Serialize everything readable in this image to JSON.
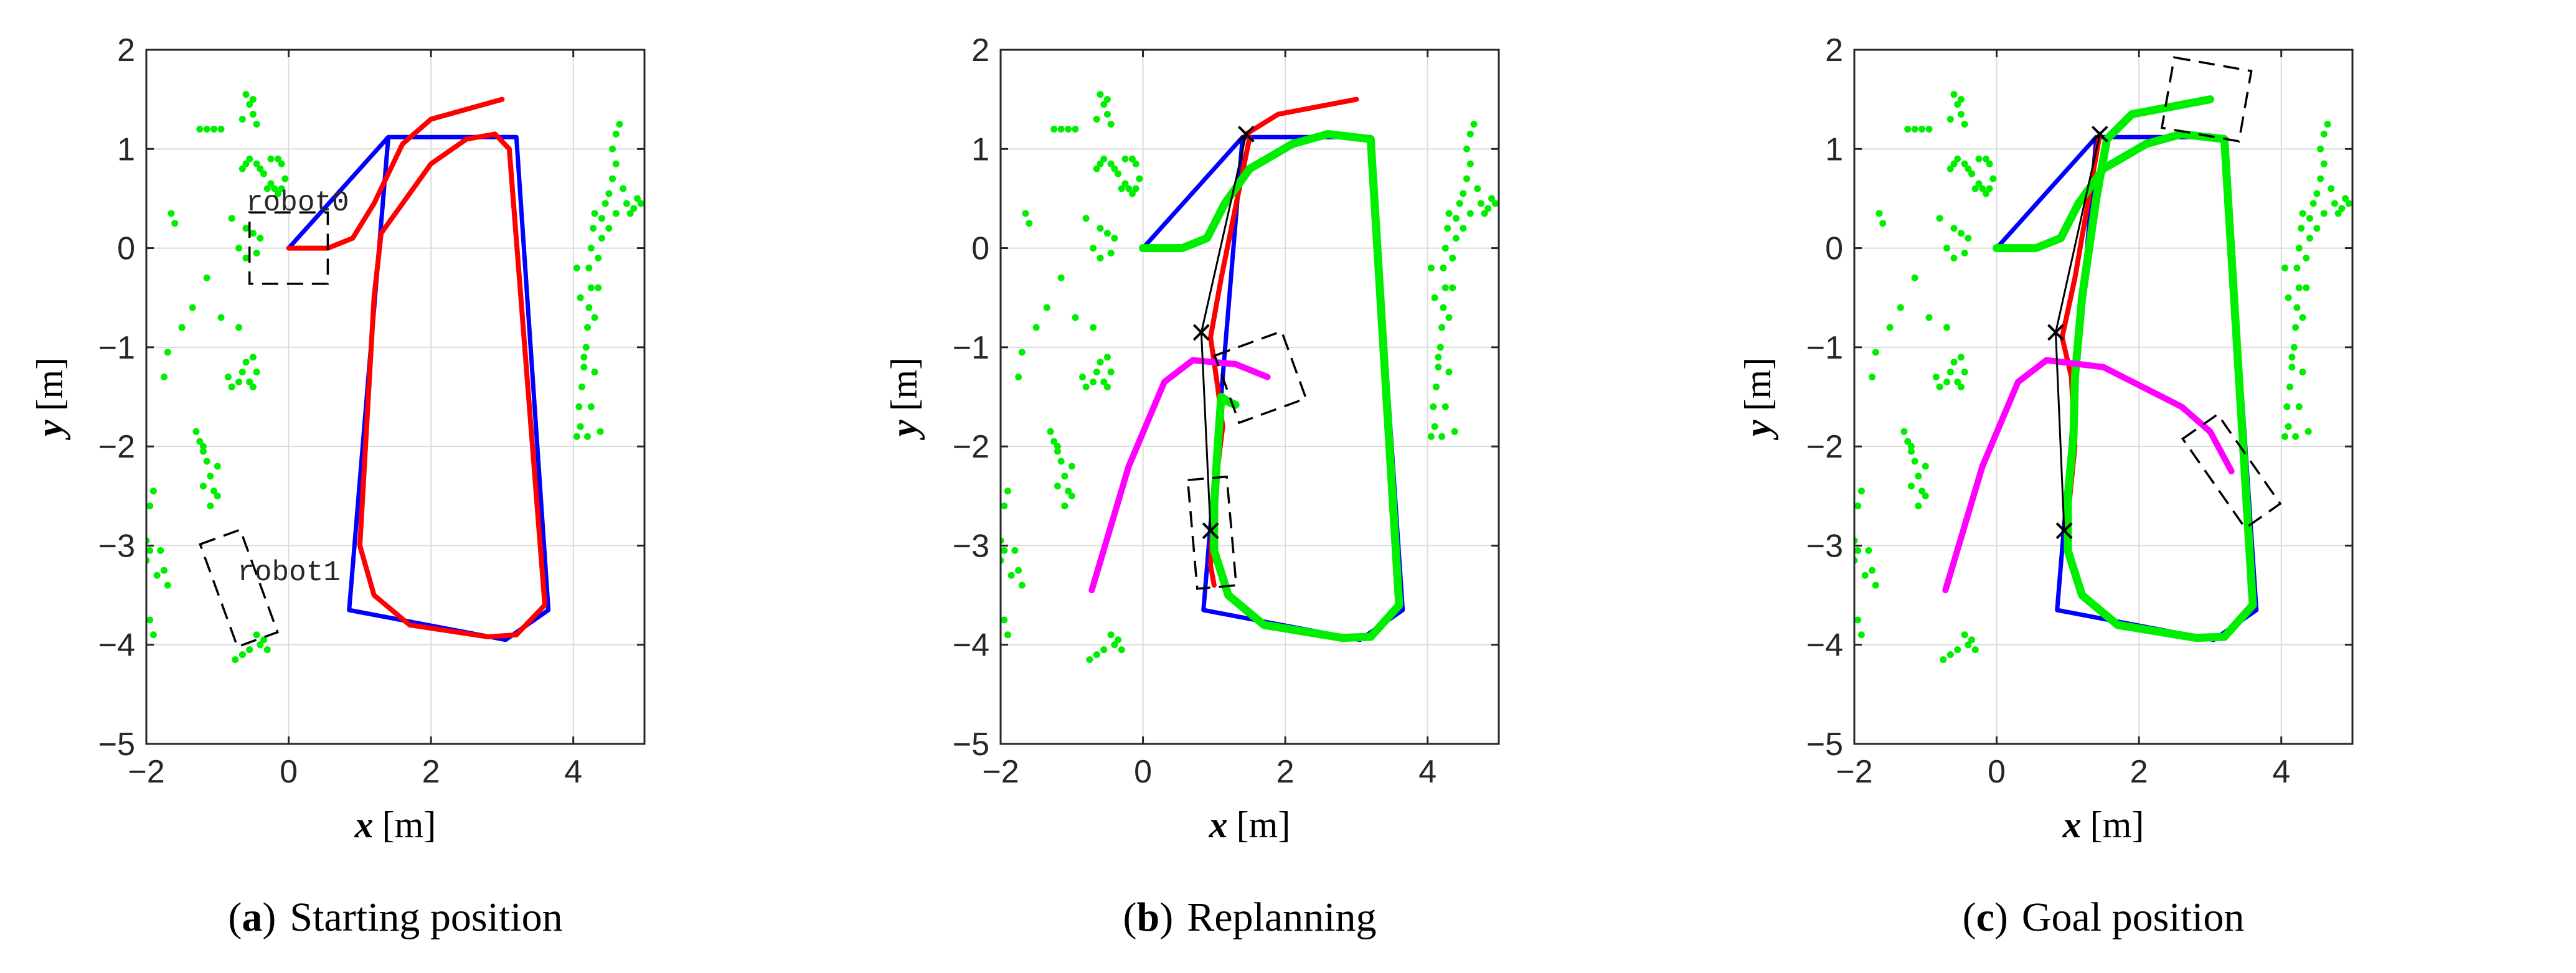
{
  "colors": {
    "reference": "#0000ff",
    "robot0_path": "#ff0000",
    "robot0_actual": "#00ee00",
    "robot1_path": "#ff00ff",
    "obstacles": "#00ee00",
    "waypoints": "#000000",
    "grid": "#dcdcdc"
  },
  "chart_data": [
    {
      "type": "line",
      "panel": "a",
      "caption_letter": "a",
      "caption_text": "Starting position",
      "xlabel_var": "x",
      "xlabel_unit": "[m]",
      "ylabel_var": "y",
      "ylabel_unit": "[m]",
      "xlim": [
        -2,
        5
      ],
      "ylim": [
        -5,
        2
      ],
      "xticks": [
        "−2",
        "0",
        "2",
        "4"
      ],
      "yticks": [
        "−5",
        "−4",
        "−3",
        "−2",
        "−1",
        "0",
        "1",
        "2"
      ],
      "grid": true,
      "robot_labels": [
        {
          "text": "robot0",
          "x": -0.6,
          "y": 0.38
        },
        {
          "text": "robot1",
          "x": -0.72,
          "y": -3.35
        }
      ],
      "robot_boxes": [
        {
          "name": "robot0",
          "cx": 0.0,
          "cy": 0.0,
          "w": 1.1,
          "h": 0.72,
          "angle": 0
        },
        {
          "name": "robot1",
          "cx": -0.7,
          "cy": -3.43,
          "w": 0.6,
          "h": 1.1,
          "angle": -20
        }
      ],
      "series": [
        {
          "key": "reference",
          "points": [
            [
              0,
              0
            ],
            [
              1.4,
              1.12
            ],
            [
              3.2,
              1.12
            ],
            [
              3.65,
              -3.65
            ],
            [
              3.05,
              -3.95
            ],
            [
              0.85,
              -3.65
            ],
            [
              1.4,
              1.12
            ],
            [
              0,
              0
            ]
          ]
        },
        {
          "key": "robot0_path",
          "points": [
            [
              0,
              0
            ],
            [
              0.55,
              0
            ],
            [
              0.9,
              0.1
            ],
            [
              1.2,
              0.45
            ],
            [
              1.6,
              1.05
            ],
            [
              2.0,
              1.3
            ],
            [
              3.0,
              1.5
            ]
          ]
        },
        {
          "key": "robot0_path",
          "points": [
            [
              1.3,
              0.15
            ],
            [
              1.2,
              -0.5
            ],
            [
              1.0,
              -3.0
            ],
            [
              1.2,
              -3.5
            ],
            [
              1.7,
              -3.8
            ],
            [
              2.8,
              -3.92
            ],
            [
              3.2,
              -3.9
            ],
            [
              3.6,
              -3.6
            ],
            [
              3.1,
              1.0
            ],
            [
              2.9,
              1.15
            ],
            [
              2.5,
              1.1
            ],
            [
              2.0,
              0.85
            ],
            [
              1.55,
              0.4
            ],
            [
              1.3,
              0.15
            ]
          ]
        }
      ],
      "waypoints": []
    },
    {
      "type": "line",
      "panel": "b",
      "caption_letter": "b",
      "caption_text": "Replanning",
      "xlabel_var": "x",
      "xlabel_unit": "[m]",
      "ylabel_var": "y",
      "ylabel_unit": "[m]",
      "xlim": [
        -2,
        5
      ],
      "ylim": [
        -5,
        2
      ],
      "xticks": [
        "−2",
        "0",
        "2",
        "4"
      ],
      "yticks": [
        "−5",
        "−4",
        "−3",
        "−2",
        "−1",
        "0",
        "1",
        "2"
      ],
      "grid": true,
      "robot_labels": [],
      "robot_boxes": [
        {
          "name": "robot0",
          "cx": 1.65,
          "cy": -1.3,
          "w": 1.0,
          "h": 0.72,
          "angle": -20
        },
        {
          "name": "robot1",
          "cx": 0.97,
          "cy": -2.87,
          "w": 0.55,
          "h": 1.1,
          "angle": -5
        }
      ],
      "series": [
        {
          "key": "reference",
          "points": [
            [
              0,
              0
            ],
            [
              1.4,
              1.12
            ],
            [
              3.2,
              1.12
            ],
            [
              3.65,
              -3.65
            ],
            [
              3.05,
              -3.95
            ],
            [
              0.85,
              -3.65
            ],
            [
              1.4,
              1.12
            ],
            [
              0,
              0
            ]
          ]
        },
        {
          "key": "robot0_path",
          "points": [
            [
              1.5,
              1.12
            ],
            [
              1.1,
              -0.3
            ],
            [
              0.95,
              -0.9
            ],
            [
              1.05,
              -1.4
            ],
            [
              1.12,
              -1.8
            ],
            [
              1.0,
              -2.5
            ],
            [
              0.95,
              -3.2
            ],
            [
              1.0,
              -3.4
            ]
          ]
        },
        {
          "key": "robot0_path",
          "points": [
            [
              1.45,
              1.15
            ],
            [
              1.9,
              1.35
            ],
            [
              3.0,
              1.5
            ]
          ]
        },
        {
          "key": "robot0_actual",
          "points": [
            [
              0,
              0
            ],
            [
              0.55,
              0
            ],
            [
              0.9,
              0.1
            ],
            [
              1.15,
              0.45
            ],
            [
              1.5,
              0.8
            ],
            [
              2.1,
              1.05
            ],
            [
              2.6,
              1.15
            ],
            [
              3.2,
              1.1
            ],
            [
              3.6,
              -3.6
            ],
            [
              3.2,
              -3.92
            ],
            [
              2.8,
              -3.93
            ],
            [
              1.7,
              -3.8
            ],
            [
              1.2,
              -3.5
            ],
            [
              1.0,
              -3.05
            ],
            [
              1.0,
              -2.6
            ],
            [
              1.05,
              -2.0
            ],
            [
              1.1,
              -1.5
            ],
            [
              1.2,
              -1.55
            ],
            [
              1.3,
              -1.58
            ]
          ]
        },
        {
          "key": "robot1_path",
          "points": [
            [
              -0.72,
              -3.45
            ],
            [
              -0.2,
              -2.2
            ],
            [
              0.3,
              -1.35
            ],
            [
              0.7,
              -1.13
            ],
            [
              1.3,
              -1.17
            ],
            [
              1.75,
              -1.3
            ]
          ]
        }
      ],
      "waypoints": [
        [
          1.45,
          1.15
        ],
        [
          0.82,
          -0.85
        ],
        [
          0.95,
          -2.85
        ]
      ]
    },
    {
      "type": "line",
      "panel": "c",
      "caption_letter": "c",
      "caption_text": "Goal position",
      "xlabel_var": "x",
      "xlabel_unit": "[m]",
      "ylabel_var": "y",
      "ylabel_unit": "[m]",
      "xlim": [
        -2,
        5
      ],
      "ylim": [
        -5,
        2
      ],
      "xticks": [
        "−2",
        "0",
        "2",
        "4"
      ],
      "yticks": [
        "−5",
        "−4",
        "−3",
        "−2",
        "−1",
        "0",
        "1",
        "2"
      ],
      "grid": true,
      "robot_labels": [],
      "robot_boxes": [
        {
          "name": "robot0",
          "cx": 2.95,
          "cy": 1.5,
          "w": 1.1,
          "h": 0.72,
          "angle": 10
        },
        {
          "name": "robot1",
          "cx": 3.3,
          "cy": -2.25,
          "w": 0.6,
          "h": 1.1,
          "angle": -35
        }
      ],
      "series": [
        {
          "key": "reference",
          "points": [
            [
              0,
              0
            ],
            [
              1.4,
              1.12
            ],
            [
              3.2,
              1.12
            ],
            [
              3.65,
              -3.65
            ],
            [
              3.05,
              -3.95
            ],
            [
              0.85,
              -3.65
            ],
            [
              1.4,
              1.12
            ],
            [
              0,
              0
            ]
          ]
        },
        {
          "key": "robot0_path",
          "points": [
            [
              1.45,
              1.15
            ],
            [
              1.1,
              -0.3
            ],
            [
              0.92,
              -0.9
            ],
            [
              1.05,
              -1.3
            ],
            [
              1.1,
              -2.0
            ],
            [
              0.98,
              -2.85
            ]
          ]
        },
        {
          "key": "robot0_actual",
          "points": [
            [
              0,
              0
            ],
            [
              0.55,
              0
            ],
            [
              0.9,
              0.1
            ],
            [
              1.15,
              0.45
            ],
            [
              1.5,
              0.8
            ],
            [
              2.1,
              1.05
            ],
            [
              2.6,
              1.15
            ],
            [
              3.2,
              1.1
            ],
            [
              3.6,
              -3.6
            ],
            [
              3.2,
              -3.92
            ],
            [
              2.8,
              -3.93
            ],
            [
              1.7,
              -3.8
            ],
            [
              1.2,
              -3.5
            ],
            [
              1.0,
              -3.05
            ],
            [
              1.0,
              -2.5
            ],
            [
              1.08,
              -1.9
            ],
            [
              1.1,
              -1.3
            ],
            [
              1.2,
              -0.5
            ],
            [
              1.4,
              0.5
            ],
            [
              1.55,
              1.1
            ],
            [
              1.9,
              1.35
            ],
            [
              3.0,
              1.5
            ]
          ]
        },
        {
          "key": "robot1_path",
          "points": [
            [
              -0.72,
              -3.45
            ],
            [
              -0.2,
              -2.2
            ],
            [
              0.3,
              -1.35
            ],
            [
              0.7,
              -1.13
            ],
            [
              1.5,
              -1.2
            ],
            [
              2.6,
              -1.6
            ],
            [
              3.0,
              -1.85
            ],
            [
              3.3,
              -2.25
            ]
          ]
        }
      ],
      "waypoints": [
        [
          1.45,
          1.15
        ],
        [
          0.83,
          -0.85
        ],
        [
          0.95,
          -2.85
        ]
      ]
    }
  ],
  "obstacle_points": [
    [
      -1.25,
      1.2
    ],
    [
      -1.15,
      1.2
    ],
    [
      -1.05,
      1.2
    ],
    [
      -0.95,
      1.2
    ],
    [
      -0.65,
      1.3
    ],
    [
      -0.55,
      1.45
    ],
    [
      -0.5,
      1.35
    ],
    [
      -0.45,
      1.25
    ],
    [
      -0.6,
      1.55
    ],
    [
      -0.5,
      1.5
    ],
    [
      -0.65,
      0.8
    ],
    [
      -0.6,
      0.85
    ],
    [
      -0.55,
      0.9
    ],
    [
      -0.45,
      0.85
    ],
    [
      -0.4,
      0.8
    ],
    [
      -0.35,
      0.75
    ],
    [
      -0.25,
      0.65
    ],
    [
      -0.2,
      0.6
    ],
    [
      -0.15,
      0.55
    ],
    [
      -0.1,
      0.6
    ],
    [
      -0.05,
      0.7
    ],
    [
      -0.1,
      0.85
    ],
    [
      -0.15,
      0.9
    ],
    [
      -0.25,
      0.9
    ],
    [
      -0.35,
      0.75
    ],
    [
      -0.3,
      0.6
    ],
    [
      -0.8,
      0.3
    ],
    [
      -0.6,
      0.2
    ],
    [
      -0.5,
      0.15
    ],
    [
      -0.4,
      0.1
    ],
    [
      -0.45,
      -0.05
    ],
    [
      -0.6,
      -0.1
    ],
    [
      -0.7,
      0.0
    ],
    [
      -1.65,
      0.35
    ],
    [
      -1.6,
      0.25
    ],
    [
      -1.15,
      -0.3
    ],
    [
      -1.35,
      -0.6
    ],
    [
      -1.5,
      -0.8
    ],
    [
      -0.95,
      -0.7
    ],
    [
      -0.7,
      -0.8
    ],
    [
      -0.85,
      -1.3
    ],
    [
      -0.8,
      -1.4
    ],
    [
      -0.7,
      -1.35
    ],
    [
      -0.65,
      -1.25
    ],
    [
      -0.6,
      -1.15
    ],
    [
      -0.5,
      -1.1
    ],
    [
      -0.45,
      -1.25
    ],
    [
      -0.5,
      -1.4
    ],
    [
      -0.55,
      -1.35
    ],
    [
      -1.7,
      -1.05
    ],
    [
      -1.75,
      -1.3
    ],
    [
      -1.3,
      -1.85
    ],
    [
      -1.25,
      -1.95
    ],
    [
      -1.2,
      -2.05
    ],
    [
      -1.15,
      -2.15
    ],
    [
      -1.1,
      -2.3
    ],
    [
      -1.05,
      -2.45
    ],
    [
      -1.0,
      -2.5
    ],
    [
      -1.1,
      -2.6
    ],
    [
      -1.2,
      -2.4
    ],
    [
      -1.2,
      -2.0
    ],
    [
      -1.0,
      -2.2
    ],
    [
      -1.9,
      -2.45
    ],
    [
      -1.95,
      -2.6
    ],
    [
      -2.0,
      -2.95
    ],
    [
      -1.95,
      -3.05
    ],
    [
      -2.0,
      -3.15
    ],
    [
      -1.8,
      -3.05
    ],
    [
      -1.75,
      -3.25
    ],
    [
      -1.7,
      -3.4
    ],
    [
      -1.85,
      -3.3
    ],
    [
      -1.9,
      -3.9
    ],
    [
      -1.95,
      -3.75
    ],
    [
      -0.75,
      -4.15
    ],
    [
      -0.65,
      -4.1
    ],
    [
      -0.55,
      -4.05
    ],
    [
      -0.4,
      -4.0
    ],
    [
      -0.35,
      -3.95
    ],
    [
      -0.45,
      -3.9
    ],
    [
      -0.3,
      -4.05
    ],
    [
      4.05,
      -1.9
    ],
    [
      4.1,
      -1.8
    ],
    [
      4.08,
      -1.6
    ],
    [
      4.12,
      -1.4
    ],
    [
      4.15,
      -1.2
    ],
    [
      4.18,
      -1.0
    ],
    [
      4.2,
      -0.8
    ],
    [
      4.22,
      -0.6
    ],
    [
      4.25,
      -0.4
    ],
    [
      4.22,
      -0.2
    ],
    [
      4.25,
      0.0
    ],
    [
      4.28,
      0.2
    ],
    [
      4.3,
      0.35
    ],
    [
      4.05,
      -0.2
    ],
    [
      4.1,
      -0.5
    ],
    [
      4.15,
      -1.1
    ],
    [
      4.4,
      0.3
    ],
    [
      4.45,
      0.45
    ],
    [
      4.5,
      0.55
    ],
    [
      4.55,
      0.7
    ],
    [
      4.6,
      0.85
    ],
    [
      4.55,
      1.0
    ],
    [
      4.6,
      1.15
    ],
    [
      4.65,
      1.25
    ],
    [
      4.7,
      0.6
    ],
    [
      4.75,
      0.45
    ],
    [
      4.8,
      0.35
    ],
    [
      4.85,
      0.4
    ],
    [
      4.9,
      0.5
    ],
    [
      4.95,
      0.45
    ],
    [
      4.6,
      0.35
    ],
    [
      4.5,
      0.2
    ],
    [
      4.4,
      0.1
    ],
    [
      4.35,
      -0.1
    ],
    [
      4.35,
      -0.4
    ],
    [
      4.3,
      -0.7
    ],
    [
      4.25,
      -1.6
    ],
    [
      4.2,
      -1.9
    ],
    [
      4.38,
      -1.85
    ],
    [
      4.3,
      -1.25
    ]
  ]
}
